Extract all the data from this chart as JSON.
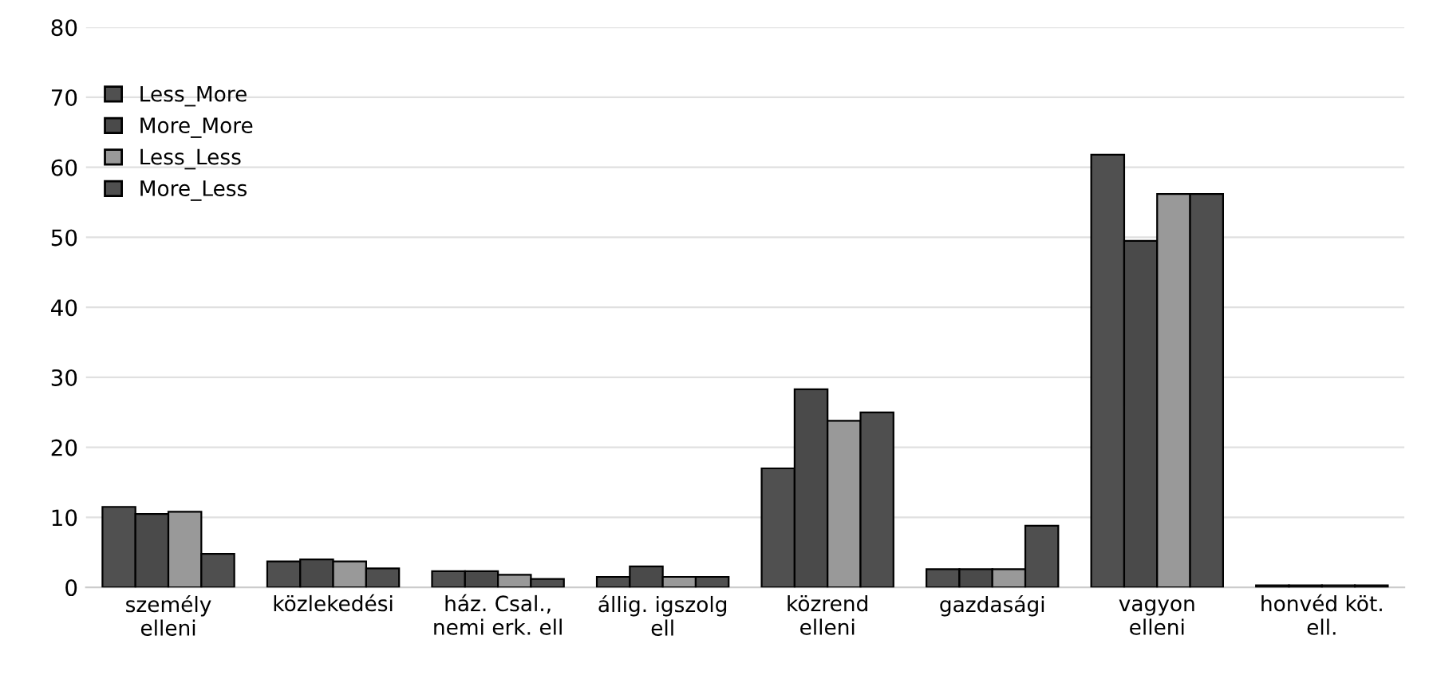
{
  "chart_data": {
    "type": "bar",
    "categories": [
      "személy\nelleni",
      "közlekedési",
      "ház. Csal.,\nnemi erk. ell",
      "állig. igszolg\nell",
      "közrend\nelleni",
      "gazdasági",
      "vagyon\nelleni",
      "honvéd köt.\nell."
    ],
    "series": [
      {
        "name": "Less_More",
        "color": "#505050",
        "values": [
          11.5,
          3.7,
          2.3,
          1.5,
          17,
          2.6,
          61.8,
          0.3
        ]
      },
      {
        "name": "More_More",
        "color": "#4a4a4a",
        "values": [
          10.5,
          4.0,
          2.3,
          3.0,
          28.3,
          2.6,
          49.5,
          0.3
        ]
      },
      {
        "name": "Less_Less",
        "color": "#999999",
        "values": [
          10.8,
          3.7,
          1.8,
          1.5,
          23.8,
          2.6,
          56.2,
          0.3
        ]
      },
      {
        "name": "More_Less",
        "color": "#4f4f4f",
        "values": [
          4.8,
          2.7,
          1.2,
          1.5,
          25,
          8.8,
          56.2,
          0.3
        ]
      }
    ],
    "ylim": [
      0,
      80
    ],
    "yticks": [
      0,
      10,
      20,
      30,
      40,
      50,
      60,
      70,
      80
    ],
    "grid": "y",
    "legend": "top left"
  }
}
